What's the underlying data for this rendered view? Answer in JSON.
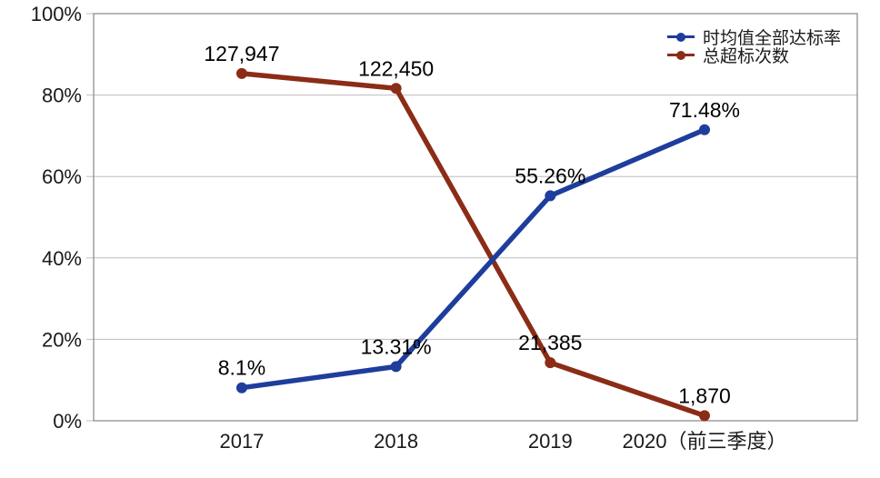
{
  "chart_data": {
    "type": "line",
    "title": "",
    "categories": [
      "2017",
      "2018",
      "2019",
      "2020（前三季度）"
    ],
    "series": [
      {
        "name": "时均值全部达标率",
        "color": "#1e3d9c",
        "axis": "left",
        "values": [
          8.1,
          13.31,
          55.26,
          71.48
        ],
        "labels": [
          "8.1%",
          "13.31%",
          "55.26%",
          "71.48%"
        ]
      },
      {
        "name": "总超标次数",
        "color": "#8b2c17",
        "axis": "right",
        "values": [
          127947,
          122450,
          21385,
          1870
        ],
        "labels": [
          "127,947",
          "122,450",
          "21,385",
          "1,870"
        ]
      }
    ],
    "y_left": {
      "min": 0,
      "max": 100,
      "ticks": [
        {
          "value": 0,
          "label": "0%"
        },
        {
          "value": 20,
          "label": "20%"
        },
        {
          "value": 40,
          "label": "40%"
        },
        {
          "value": 60,
          "label": "60%"
        },
        {
          "value": 80,
          "label": "80%"
        },
        {
          "value": 100,
          "label": "100%"
        }
      ]
    },
    "y_right": {
      "min": 0,
      "max": 150000,
      "visible": false
    },
    "grid": true,
    "legend_position": "top-right",
    "colors": {
      "grid": "#bdbdbd",
      "border": "#8e8e8e",
      "text": "#1a1a1a",
      "label": "#000000",
      "background": "#ffffff"
    }
  }
}
